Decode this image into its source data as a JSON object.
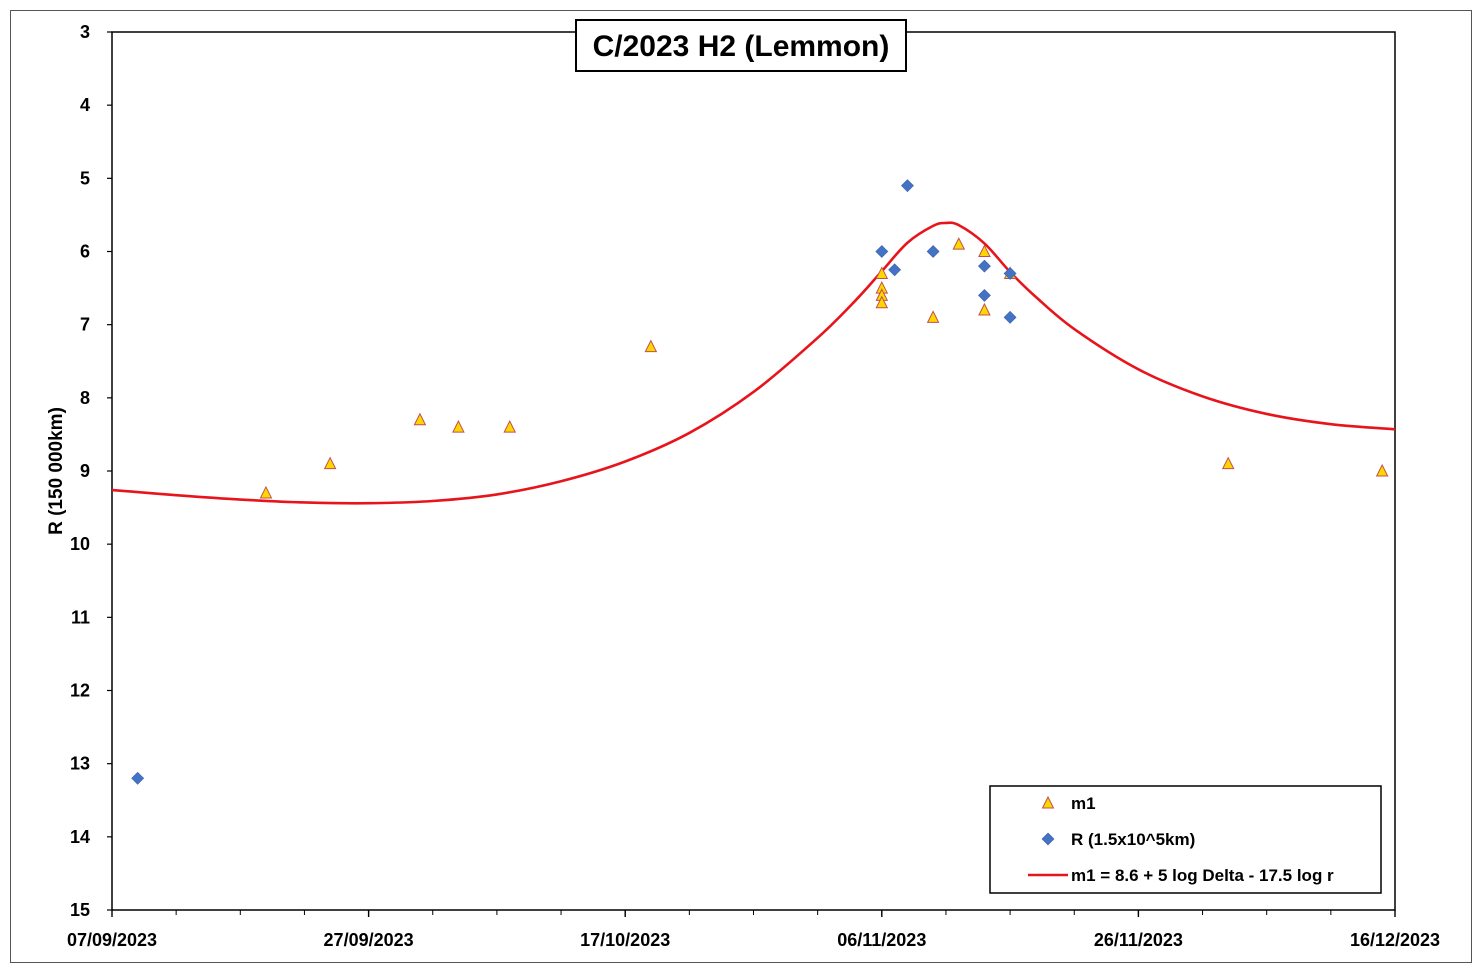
{
  "chart_data": {
    "type": "scatter",
    "title": "C/2023 H2 (Lemmon)",
    "xlabel": "",
    "ylabel": "R (150 000km)",
    "x_type": "date",
    "xlim": [
      "07/09/2023",
      "16/12/2023"
    ],
    "x_ticks": [
      "07/09/2023",
      "27/09/2023",
      "17/10/2023",
      "06/11/2023",
      "26/11/2023",
      "16/12/2023"
    ],
    "x_minor_tick_interval_days": 5,
    "ylim": [
      3,
      15
    ],
    "y_inverted": true,
    "y_ticks": [
      3,
      4,
      5,
      6,
      7,
      8,
      9,
      10,
      11,
      12,
      13,
      14,
      15
    ],
    "grid": false,
    "legend_position": "bottom-right",
    "colors": {
      "m1": "#FFD700",
      "m1_edge": "#C0504D",
      "R": "#4472C4",
      "fit": "#E8141C"
    },
    "series": [
      {
        "name": "m1",
        "marker": "triangle",
        "points": [
          {
            "x": "19/09/2023",
            "y": 9.3
          },
          {
            "x": "24/09/2023",
            "y": 8.9
          },
          {
            "x": "01/10/2023",
            "y": 8.3
          },
          {
            "x": "04/10/2023",
            "y": 8.4
          },
          {
            "x": "08/10/2023",
            "y": 8.4
          },
          {
            "x": "19/10/2023",
            "y": 7.3
          },
          {
            "x": "06/11/2023",
            "y": 6.3
          },
          {
            "x": "06/11/2023",
            "y": 6.5
          },
          {
            "x": "06/11/2023",
            "y": 6.6
          },
          {
            "x": "06/11/2023",
            "y": 6.7
          },
          {
            "x": "10/11/2023",
            "y": 6.9
          },
          {
            "x": "12/11/2023",
            "y": 5.9
          },
          {
            "x": "14/11/2023",
            "y": 6.0
          },
          {
            "x": "14/11/2023",
            "y": 6.8
          },
          {
            "x": "16/11/2023",
            "y": 6.3
          },
          {
            "x": "03/12/2023",
            "y": 8.9
          },
          {
            "x": "15/12/2023",
            "y": 9.0
          }
        ]
      },
      {
        "name": "R (1.5x10^5km)",
        "marker": "diamond",
        "points": [
          {
            "x": "09/09/2023",
            "y": 13.2
          },
          {
            "x": "06/11/2023",
            "y": 6.0
          },
          {
            "x": "07/11/2023",
            "y": 6.25
          },
          {
            "x": "08/11/2023",
            "y": 5.1
          },
          {
            "x": "10/11/2023",
            "y": 6.0
          },
          {
            "x": "14/11/2023",
            "y": 6.2
          },
          {
            "x": "14/11/2023",
            "y": 6.6
          },
          {
            "x": "16/11/2023",
            "y": 6.3
          },
          {
            "x": "16/11/2023",
            "y": 6.9
          }
        ]
      },
      {
        "name": "m1 = 8.6 + 5 log Delta - 17.5 log r",
        "type": "line",
        "points": [
          {
            "x": "07/09/2023",
            "y": 9.26
          },
          {
            "x": "12/09/2023",
            "y": 9.33
          },
          {
            "x": "17/09/2023",
            "y": 9.39
          },
          {
            "x": "22/09/2023",
            "y": 9.43
          },
          {
            "x": "27/09/2023",
            "y": 9.44
          },
          {
            "x": "02/10/2023",
            "y": 9.41
          },
          {
            "x": "07/10/2023",
            "y": 9.32
          },
          {
            "x": "12/10/2023",
            "y": 9.14
          },
          {
            "x": "17/10/2023",
            "y": 8.87
          },
          {
            "x": "22/10/2023",
            "y": 8.48
          },
          {
            "x": "27/10/2023",
            "y": 7.92
          },
          {
            "x": "01/11/2023",
            "y": 7.18
          },
          {
            "x": "04/11/2023",
            "y": 6.66
          },
          {
            "x": "06/11/2023",
            "y": 6.27
          },
          {
            "x": "08/11/2023",
            "y": 5.88
          },
          {
            "x": "10/11/2023",
            "y": 5.65
          },
          {
            "x": "11/11/2023",
            "y": 5.61
          },
          {
            "x": "12/11/2023",
            "y": 5.64
          },
          {
            "x": "14/11/2023",
            "y": 5.89
          },
          {
            "x": "16/11/2023",
            "y": 6.28
          },
          {
            "x": "18/11/2023",
            "y": 6.62
          },
          {
            "x": "21/11/2023",
            "y": 7.06
          },
          {
            "x": "26/11/2023",
            "y": 7.61
          },
          {
            "x": "01/12/2023",
            "y": 7.98
          },
          {
            "x": "06/12/2023",
            "y": 8.22
          },
          {
            "x": "11/12/2023",
            "y": 8.36
          },
          {
            "x": "16/12/2023",
            "y": 8.43
          }
        ]
      }
    ]
  }
}
